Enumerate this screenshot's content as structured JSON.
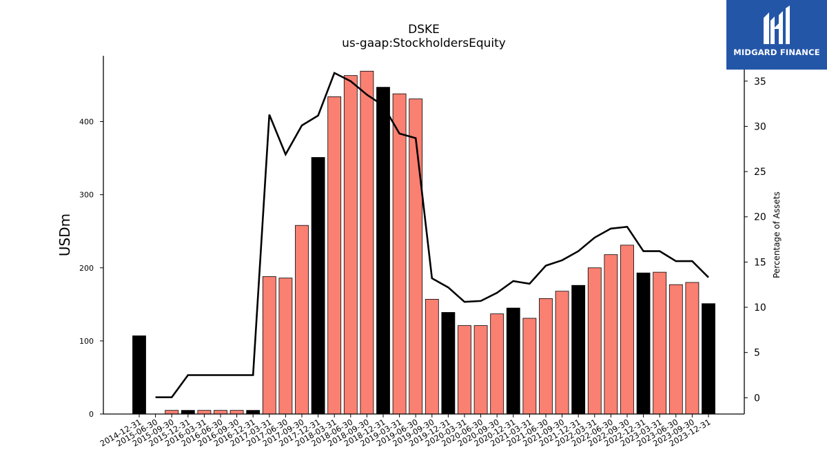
{
  "chart_data": {
    "type": "bar",
    "title": "DSKE",
    "subtitle": "us-gaap:StockholdersEquity",
    "ylabel": "USDm",
    "y2label": "Percentage of Assets",
    "ylim": [
      0,
      490
    ],
    "y2lim": [
      -1.8,
      37.8
    ],
    "yticks": [
      0,
      100,
      200,
      300,
      400
    ],
    "y2ticks": [
      0,
      5,
      10,
      15,
      20,
      25,
      30,
      35
    ],
    "categories": [
      "2014-12-31",
      "2015-06-30",
      "2015-09-30",
      "2015-12-31",
      "2016-03-31",
      "2016-06-30",
      "2016-09-30",
      "2016-12-31",
      "2017-03-31",
      "2017-06-30",
      "2017-09-30",
      "2017-12-31",
      "2018-03-31",
      "2018-06-30",
      "2018-09-30",
      "2018-12-31",
      "2019-03-31",
      "2019-06-30",
      "2019-09-30",
      "2019-12-31",
      "2020-03-31",
      "2020-06-30",
      "2020-09-30",
      "2020-12-31",
      "2021-03-31",
      "2021-06-30",
      "2021-09-30",
      "2021-12-31",
      "2022-03-31",
      "2022-06-30",
      "2022-09-30",
      "2022-12-31",
      "2023-03-31",
      "2023-06-30",
      "2023-09-30",
      "2023-12-31"
    ],
    "series": [
      {
        "kind": "bar",
        "values": [
          107,
          0,
          5,
          5,
          5,
          5,
          5,
          5,
          188,
          186,
          258,
          351,
          434,
          463,
          469,
          447,
          438,
          431,
          157,
          139,
          121,
          121,
          137,
          145,
          131,
          158,
          168,
          176,
          200,
          218,
          231,
          193,
          194,
          177,
          180,
          151
        ],
        "bar_colors": [
          "#000000",
          "#fa8072",
          "#fa8072",
          "#000000",
          "#fa8072",
          "#fa8072",
          "#fa8072",
          "#000000",
          "#fa8072",
          "#fa8072",
          "#fa8072",
          "#000000",
          "#fa8072",
          "#fa8072",
          "#fa8072",
          "#000000",
          "#fa8072",
          "#fa8072",
          "#fa8072",
          "#000000",
          "#fa8072",
          "#fa8072",
          "#fa8072",
          "#000000",
          "#fa8072",
          "#fa8072",
          "#fa8072",
          "#000000",
          "#fa8072",
          "#fa8072",
          "#fa8072",
          "#000000",
          "#fa8072",
          "#fa8072",
          "#fa8072",
          "#000000"
        ]
      },
      {
        "kind": "line",
        "axis": "right",
        "color": "#000000",
        "values": [
          null,
          0.05,
          0.05,
          2.5,
          2.5,
          2.5,
          2.5,
          2.5,
          31.3,
          26.9,
          30.1,
          31.2,
          35.9,
          35.0,
          33.5,
          32.3,
          29.2,
          28.7,
          13.2,
          12.2,
          10.6,
          10.7,
          11.6,
          12.9,
          12.6,
          14.6,
          15.2,
          16.2,
          17.7,
          18.7,
          18.9,
          16.2,
          16.2,
          15.1,
          15.1,
          13.3
        ]
      }
    ]
  },
  "logo": {
    "text": "MIDGARD FINANCE"
  }
}
